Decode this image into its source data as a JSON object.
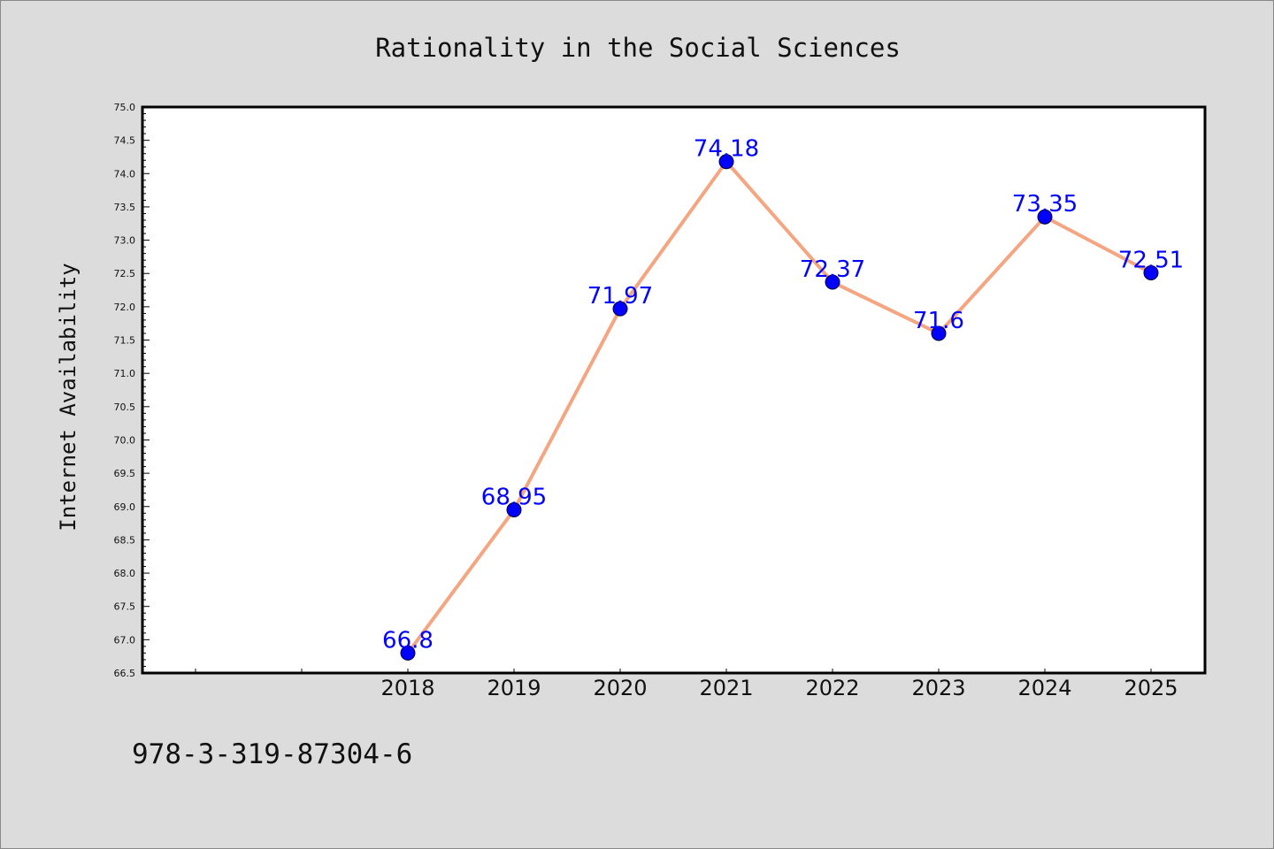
{
  "chart_data": {
    "type": "line",
    "title": "Rationality in the Social Sciences",
    "xlabel": "",
    "ylabel": "Internet Availability",
    "x": [
      "2018",
      "2019",
      "2020",
      "2021",
      "2022",
      "2023",
      "2024",
      "2025"
    ],
    "values": [
      66.8,
      68.95,
      71.97,
      74.18,
      72.37,
      71.6,
      73.35,
      72.51
    ],
    "data_labels": [
      "66.8",
      "68.95",
      "71.97",
      "74.18",
      "72.37",
      "71.6",
      "73.35",
      "72.51"
    ],
    "ylim": [
      66.5,
      75.0
    ],
    "yticks": [
      "66.5",
      "67.0",
      "67.5",
      "68.0",
      "68.5",
      "69.0",
      "69.5",
      "70.0",
      "70.5",
      "71.0",
      "71.5",
      "72.0",
      "72.5",
      "73.0",
      "73.5",
      "74.0",
      "74.5",
      "75.0"
    ],
    "grid": false,
    "line_color": "#f4a582",
    "marker_color": "#0000ff",
    "label_color": "#0000ff"
  },
  "footer": {
    "code": "978-3-319-87304-6"
  }
}
